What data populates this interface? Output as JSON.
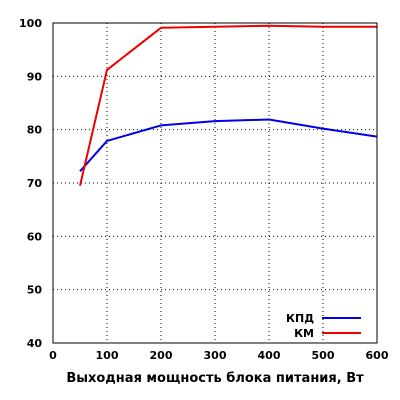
{
  "chart_data": {
    "type": "line",
    "title": "",
    "xlabel": "Выходная мощность блока питания, Вт",
    "ylabel": "",
    "xlim": [
      0,
      600
    ],
    "ylim": [
      40,
      100
    ],
    "x_ticks": [
      0,
      100,
      200,
      300,
      400,
      500,
      600
    ],
    "y_ticks": [
      40,
      50,
      60,
      70,
      80,
      90,
      100
    ],
    "x_tick_labels": [
      "0",
      "100",
      "200",
      "300",
      "400",
      "500",
      "600"
    ],
    "y_tick_labels": [
      "40",
      "50",
      "60",
      "70",
      "80",
      "90",
      "100"
    ],
    "grid": true,
    "legend_position": "bottom-right",
    "series": [
      {
        "name": "КПД",
        "color": "#0000ee",
        "x": [
          50,
          100,
          200,
          300,
          400,
          500,
          600
        ],
        "y": [
          72.2,
          77.9,
          80.8,
          81.6,
          81.9,
          80.2,
          78.7
        ]
      },
      {
        "name": "КМ",
        "color": "#ee0000",
        "x": [
          50,
          100,
          200,
          300,
          400,
          500,
          600
        ],
        "y": [
          69.5,
          91.2,
          99.1,
          99.3,
          99.5,
          99.3,
          99.3
        ]
      }
    ]
  }
}
